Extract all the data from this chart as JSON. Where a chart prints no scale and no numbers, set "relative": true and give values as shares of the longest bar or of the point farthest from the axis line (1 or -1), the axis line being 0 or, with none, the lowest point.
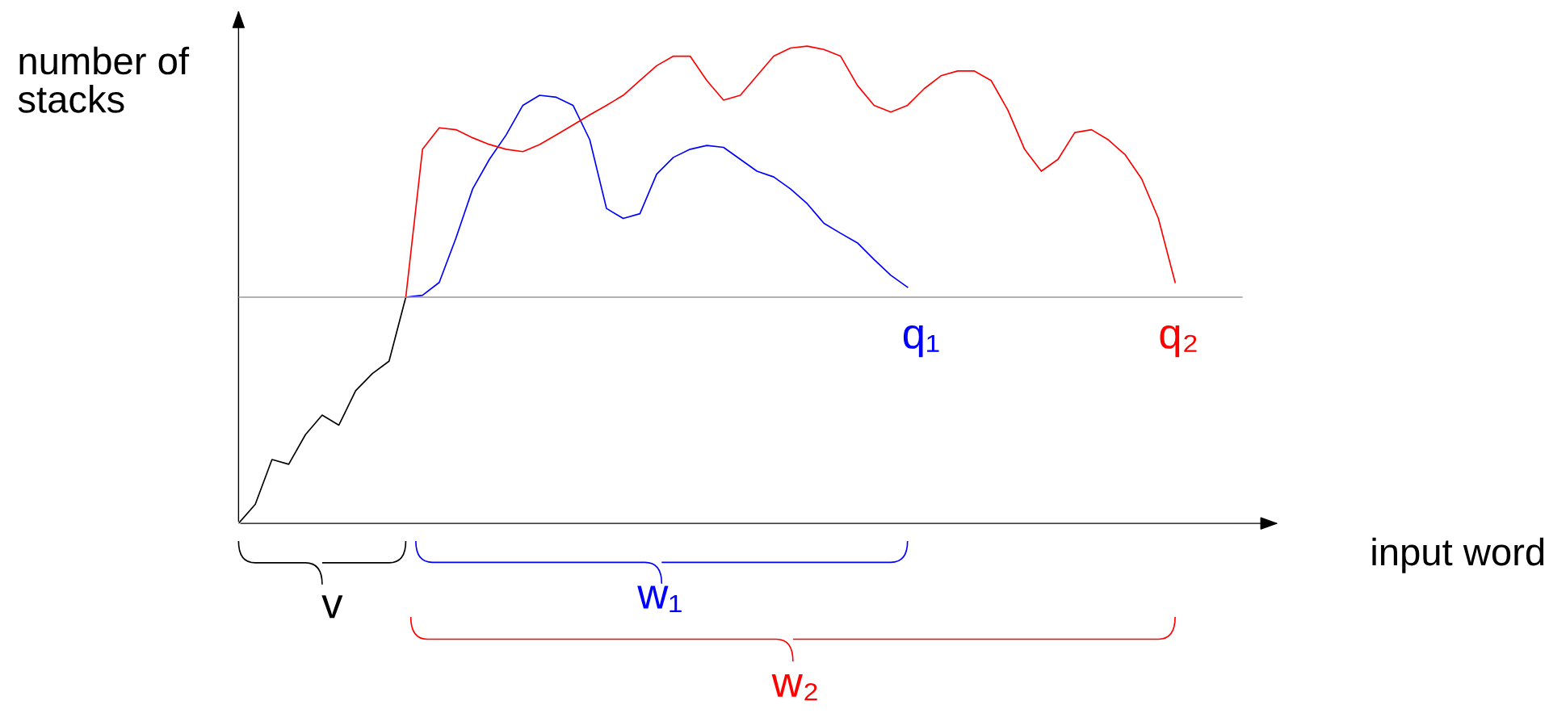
{
  "chart_data": {
    "type": "line",
    "relative": true,
    "xlabel": "input word",
    "ylabel": "number of stacks",
    "categories": [
      null,
      null,
      null,
      null,
      null,
      null,
      null,
      null,
      null,
      null,
      null,
      null,
      null,
      null,
      null,
      null,
      null,
      null,
      null,
      null,
      null,
      null,
      null,
      null,
      null,
      null,
      null,
      null,
      null,
      null,
      null,
      null,
      null,
      null,
      null,
      null,
      null,
      null,
      null,
      null,
      null,
      null,
      null,
      null,
      null,
      null,
      null,
      null,
      null,
      null,
      null,
      null,
      null,
      null,
      null,
      null,
      null
    ],
    "series": [
      {
        "color": "#000000",
        "values": [
          0,
          0.04,
          0.134,
          0.124,
          0.186,
          0.227,
          0.206,
          0.278,
          0.314,
          0.34,
          0.474,
          null,
          null,
          null,
          null,
          null,
          null,
          null,
          null,
          null,
          null,
          null,
          null,
          null,
          null,
          null,
          null,
          null,
          null,
          null,
          null,
          null,
          null,
          null,
          null,
          null,
          null,
          null,
          null,
          null,
          null,
          null,
          null,
          null,
          null,
          null,
          null,
          null,
          null,
          null,
          null,
          null,
          null,
          null,
          null,
          null,
          null
        ]
      },
      {
        "color": "#0000ff",
        "values": [
          null,
          null,
          null,
          null,
          null,
          null,
          null,
          null,
          null,
          null,
          0.474,
          0.478,
          0.505,
          0.598,
          0.701,
          0.763,
          0.814,
          0.876,
          0.897,
          0.893,
          0.876,
          0.804,
          0.66,
          0.639,
          0.649,
          0.732,
          0.767,
          0.784,
          0.792,
          0.788,
          0.763,
          0.738,
          0.726,
          0.701,
          0.67,
          0.629,
          0.608,
          0.588,
          0.553,
          0.52,
          0.495,
          null,
          null,
          null,
          null,
          null,
          null,
          null,
          null,
          null,
          null,
          null,
          null,
          null,
          null,
          null,
          null
        ]
      },
      {
        "color": "#ff0000",
        "values": [
          null,
          null,
          null,
          null,
          null,
          null,
          null,
          null,
          null,
          null,
          0.474,
          0.784,
          0.829,
          0.825,
          0.808,
          0.794,
          0.784,
          0.779,
          0.794,
          0.814,
          0.835,
          0.856,
          0.876,
          0.897,
          0.928,
          0.959,
          0.979,
          0.979,
          0.928,
          0.887,
          0.897,
          0.938,
          0.979,
          0.996,
          1.0,
          0.993,
          0.979,
          0.918,
          0.876,
          0.862,
          0.876,
          0.911,
          0.938,
          0.948,
          0.948,
          0.928,
          0.866,
          0.784,
          0.738,
          0.763,
          0.819,
          0.825,
          0.804,
          0.773,
          0.722,
          0.639,
          0.505
        ]
      }
    ],
    "ref_lines": [
      {
        "axis": "y",
        "value": 0.474,
        "color": "#999999"
      }
    ],
    "annotations": [
      "q₁",
      "q₂",
      "v",
      "w₁",
      "w₂"
    ]
  }
}
